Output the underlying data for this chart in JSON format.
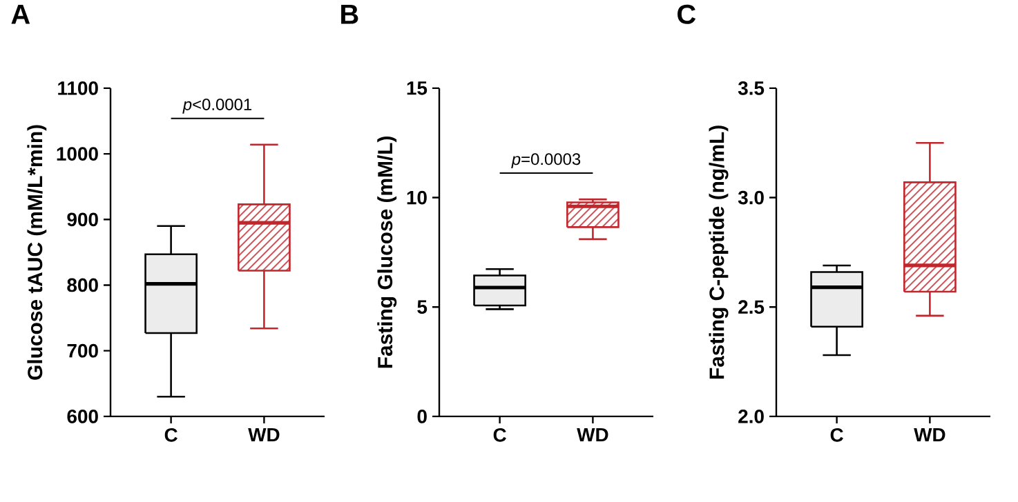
{
  "chart_data": [
    {
      "type": "box",
      "title": "A",
      "ylabel": "Glucose tAUC (mM/L*min)",
      "categories": [
        "C",
        "WD"
      ],
      "colors": [
        "#000000",
        "#c0272d"
      ],
      "ylim": [
        600,
        1100
      ],
      "yticks": [
        600,
        700,
        800,
        900,
        1000,
        1100
      ],
      "annotations": [
        "*p*<0.0001"
      ],
      "boxes": [
        {
          "low": 630,
          "q1": 727,
          "median": 802,
          "q3": 847,
          "high": 890
        },
        {
          "low": 734,
          "q1": 822,
          "median": 895,
          "q3": 923,
          "high": 1014
        }
      ]
    },
    {
      "type": "box",
      "title": "B",
      "ylabel": "Fasting Glucose (mM/L)",
      "categories": [
        "C",
        "WD"
      ],
      "colors": [
        "#000000",
        "#c0272d"
      ],
      "ylim": [
        0,
        15
      ],
      "yticks": [
        0,
        5,
        10,
        15
      ],
      "annotations": [
        "*p*=0.0003"
      ],
      "boxes": [
        {
          "low": 4.9,
          "q1": 5.07,
          "median": 5.89,
          "q3": 6.44,
          "high": 6.73
        },
        {
          "low": 8.1,
          "q1": 8.65,
          "median": 9.6,
          "q3": 9.78,
          "high": 9.92
        }
      ]
    },
    {
      "type": "box",
      "title": "C",
      "ylabel": "Fasting C-peptide (ng/mL)",
      "categories": [
        "C",
        "WD"
      ],
      "colors": [
        "#000000",
        "#c0272d"
      ],
      "ylim": [
        2.0,
        3.5
      ],
      "yticks": [
        {
          "value": 2.0,
          "label": "2.0"
        },
        {
          "value": 2.5,
          "label": "2.5"
        },
        {
          "value": 3.0,
          "label": "3.0"
        },
        {
          "value": 3.5,
          "label": "3.5"
        }
      ],
      "boxes": [
        {
          "low": 2.28,
          "q1": 2.41,
          "median": 2.59,
          "q3": 2.66,
          "high": 2.69
        },
        {
          "low": 2.46,
          "q1": 2.57,
          "median": 2.69,
          "q3": 3.07,
          "high": 3.25
        }
      ]
    }
  ]
}
